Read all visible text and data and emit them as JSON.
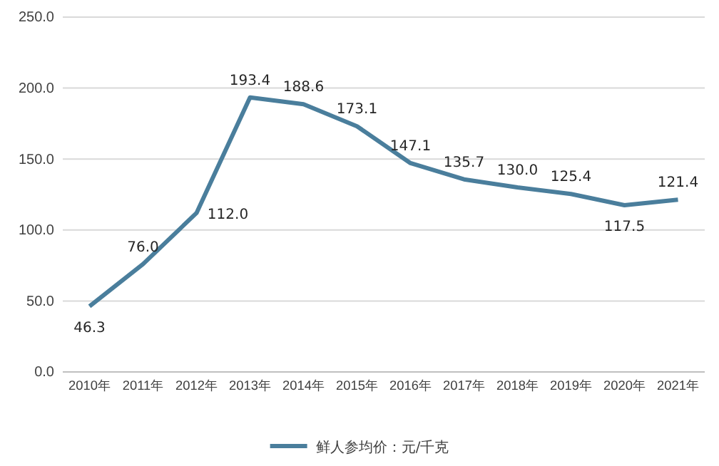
{
  "chart_data": {
    "type": "line",
    "categories": [
      "2010年",
      "2011年",
      "2012年",
      "2013年",
      "2014年",
      "2015年",
      "2016年",
      "2017年",
      "2018年",
      "2019年",
      "2020年",
      "2021年"
    ],
    "series": [
      {
        "name": "鲜人参均价：元/千克",
        "color": "#4a7e9c",
        "values": [
          46.3,
          76.0,
          112.0,
          193.4,
          188.6,
          173.1,
          147.1,
          135.7,
          130.0,
          125.4,
          117.5,
          121.4
        ],
        "value_labels": [
          "46.3",
          "76.0",
          "112.0",
          "193.4",
          "188.6",
          "173.1",
          "147.1",
          "135.7",
          "130.0",
          "125.4",
          "117.5",
          "121.4"
        ]
      }
    ],
    "ylim": [
      0,
      250
    ],
    "yticks": [
      {
        "value": 0,
        "label": "0.0"
      },
      {
        "value": 50,
        "label": "50.0"
      },
      {
        "value": 100,
        "label": "100.0"
      },
      {
        "value": 150,
        "label": "150.0"
      },
      {
        "value": 200,
        "label": "200.0"
      },
      {
        "value": 250,
        "label": "250.0"
      }
    ],
    "grid": "y",
    "legend": "bottom",
    "marker": "none",
    "line_style": "solid"
  }
}
